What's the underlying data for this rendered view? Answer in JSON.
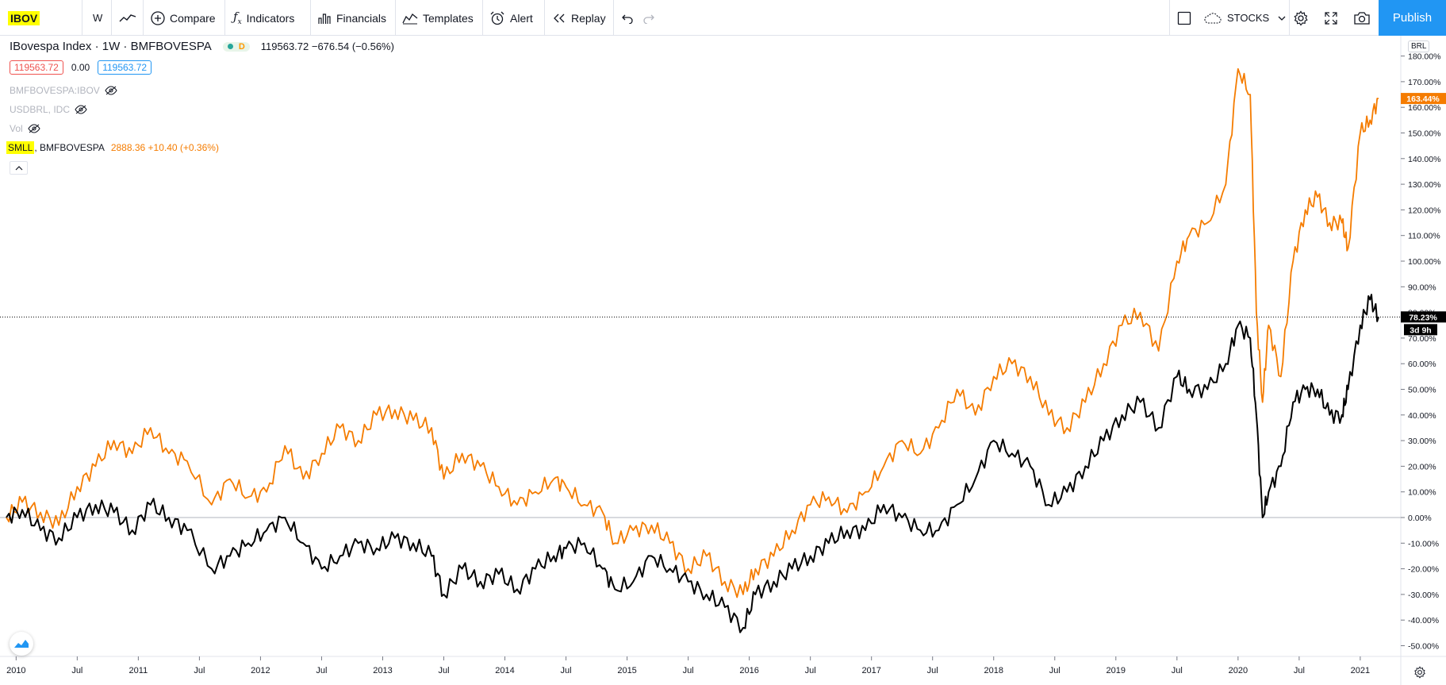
{
  "toolbar": {
    "symbol": "IBOV",
    "interval": "W",
    "compare_label": "Compare",
    "indicators_label": "Indicators",
    "financials_label": "Financials",
    "templates_label": "Templates",
    "alert_label": "Alert",
    "replay_label": "Replay",
    "layout_label": "STOCKS",
    "publish_label": "Publish"
  },
  "legend": {
    "main_title": "IBovespa Index · 1W · BMFBOVESPA",
    "main_values": "119563.72 −676.54 (−0.56%)",
    "badge_letter": "D",
    "box_red": "119563.72",
    "box_mid": "0.00",
    "box_blue": "119563.72",
    "hidden_1": "BMFBOVESPA:IBOV",
    "hidden_2": "USDBRL, IDC",
    "hidden_3": "Vol",
    "smll_symbol": "SMLL",
    "smll_exchange": ", BMFBOVESPA",
    "smll_values": "2888.36 +10.40 (+0.36%)"
  },
  "scale_label": "BRL",
  "price_tags": {
    "orange": "163.44%",
    "black": "78.23%",
    "countdown": "3d 9h"
  },
  "colors": {
    "orange": "#f57c00",
    "black": "#000000",
    "accent": "#2196f3",
    "highlight": "#ffff00"
  },
  "chart_data": {
    "type": "line",
    "ylabel": "",
    "ylim": [
      -50,
      185
    ],
    "x_range": [
      2009.92,
      2021.2
    ],
    "y_ticks": [
      "180.00%",
      "170.00%",
      "160.00%",
      "150.00%",
      "140.00%",
      "130.00%",
      "120.00%",
      "110.00%",
      "100.00%",
      "90.00%",
      "80.00%",
      "70.00%",
      "60.00%",
      "50.00%",
      "40.00%",
      "30.00%",
      "20.00%",
      "10.00%",
      "0.00%",
      "-10.00%",
      "-20.00%",
      "-30.00%",
      "-40.00%",
      "-50.00%"
    ],
    "x_ticks": [
      {
        "label": "2010",
        "x": 2010.0
      },
      {
        "label": "Jul",
        "x": 2010.5
      },
      {
        "label": "2011",
        "x": 2011.0
      },
      {
        "label": "Jul",
        "x": 2011.5
      },
      {
        "label": "2012",
        "x": 2012.0
      },
      {
        "label": "Jul",
        "x": 2012.5
      },
      {
        "label": "2013",
        "x": 2013.0
      },
      {
        "label": "Jul",
        "x": 2013.5
      },
      {
        "label": "2014",
        "x": 2014.0
      },
      {
        "label": "Jul",
        "x": 2014.5
      },
      {
        "label": "2015",
        "x": 2015.0
      },
      {
        "label": "Jul",
        "x": 2015.5
      },
      {
        "label": "2016",
        "x": 2016.0
      },
      {
        "label": "Jul",
        "x": 2016.5
      },
      {
        "label": "2017",
        "x": 2017.0
      },
      {
        "label": "Jul",
        "x": 2017.5
      },
      {
        "label": "2018",
        "x": 2018.0
      },
      {
        "label": "Jul",
        "x": 2018.5
      },
      {
        "label": "2019",
        "x": 2019.0
      },
      {
        "label": "Jul",
        "x": 2019.5
      },
      {
        "label": "2020",
        "x": 2020.0
      },
      {
        "label": "Jul",
        "x": 2020.5
      },
      {
        "label": "2021",
        "x": 2021.0
      }
    ],
    "series": [
      {
        "name": "SMLL",
        "x": [
          2009.92,
          2010.05,
          2010.2,
          2010.35,
          2010.5,
          2010.65,
          2010.8,
          2010.95,
          2011.1,
          2011.25,
          2011.4,
          2011.6,
          2011.75,
          2011.9,
          2012.05,
          2012.2,
          2012.35,
          2012.5,
          2012.65,
          2012.8,
          2012.95,
          2013.1,
          2013.25,
          2013.4,
          2013.5,
          2013.65,
          2013.8,
          2013.95,
          2014.1,
          2014.25,
          2014.4,
          2014.5,
          2014.65,
          2014.8,
          2014.9,
          2015.05,
          2015.2,
          2015.35,
          2015.5,
          2015.65,
          2015.8,
          2015.95,
          2016.05,
          2016.2,
          2016.35,
          2016.5,
          2016.65,
          2016.8,
          2016.95,
          2017.1,
          2017.25,
          2017.4,
          2017.55,
          2017.7,
          2017.85,
          2018.0,
          2018.15,
          2018.3,
          2018.45,
          2018.6,
          2018.75,
          2018.9,
          2019.05,
          2019.2,
          2019.35,
          2019.5,
          2019.6,
          2019.75,
          2019.9,
          2020.0,
          2020.1,
          2020.15,
          2020.2,
          2020.25,
          2020.35,
          2020.45,
          2020.55,
          2020.65,
          2020.75,
          2020.85,
          2020.9,
          2021.0,
          2021.08,
          2021.15
        ],
        "values": [
          0,
          6,
          2,
          -3,
          12,
          20,
          30,
          25,
          35,
          25,
          22,
          5,
          15,
          8,
          10,
          28,
          15,
          25,
          35,
          30,
          40,
          42,
          38,
          35,
          15,
          25,
          20,
          12,
          5,
          10,
          15,
          12,
          5,
          2,
          -10,
          -5,
          -3,
          -10,
          -20,
          -15,
          -25,
          -30,
          -20,
          -15,
          -5,
          5,
          8,
          2,
          10,
          20,
          30,
          25,
          35,
          50,
          40,
          55,
          60,
          55,
          40,
          35,
          45,
          60,
          75,
          80,
          65,
          100,
          110,
          115,
          130,
          175,
          165,
          80,
          45,
          75,
          55,
          100,
          120,
          125,
          115,
          115,
          105,
          150,
          155,
          163.44
        ]
      },
      {
        "name": "IBOV",
        "x": [
          2009.92,
          2010.05,
          2010.2,
          2010.35,
          2010.5,
          2010.65,
          2010.8,
          2010.95,
          2011.1,
          2011.25,
          2011.4,
          2011.6,
          2011.75,
          2011.9,
          2012.05,
          2012.2,
          2012.35,
          2012.5,
          2012.65,
          2012.8,
          2012.95,
          2013.1,
          2013.25,
          2013.4,
          2013.5,
          2013.65,
          2013.8,
          2013.95,
          2014.1,
          2014.25,
          2014.4,
          2014.5,
          2014.65,
          2014.8,
          2014.9,
          2015.05,
          2015.2,
          2015.35,
          2015.5,
          2015.65,
          2015.8,
          2015.95,
          2016.05,
          2016.2,
          2016.35,
          2016.5,
          2016.65,
          2016.8,
          2016.95,
          2017.1,
          2017.25,
          2017.4,
          2017.55,
          2017.7,
          2017.85,
          2018.0,
          2018.15,
          2018.3,
          2018.45,
          2018.6,
          2018.75,
          2018.9,
          2019.05,
          2019.2,
          2019.35,
          2019.5,
          2019.6,
          2019.75,
          2019.9,
          2020.0,
          2020.1,
          2020.15,
          2020.2,
          2020.25,
          2020.35,
          2020.45,
          2020.55,
          2020.65,
          2020.75,
          2020.85,
          2020.9,
          2021.0,
          2021.08,
          2021.15
        ],
        "values": [
          0,
          3,
          -5,
          -8,
          0,
          5,
          2,
          -5,
          5,
          0,
          -5,
          -20,
          -15,
          -10,
          -5,
          0,
          -10,
          -20,
          -15,
          -10,
          -12,
          -8,
          -10,
          -15,
          -30,
          -20,
          -25,
          -22,
          -28,
          -20,
          -15,
          -12,
          -10,
          -20,
          -28,
          -25,
          -15,
          -20,
          -25,
          -30,
          -35,
          -43,
          -30,
          -25,
          -20,
          -15,
          -10,
          -5,
          -5,
          5,
          0,
          -5,
          -5,
          5,
          15,
          30,
          25,
          20,
          5,
          10,
          20,
          30,
          40,
          45,
          35,
          55,
          50,
          50,
          60,
          75,
          70,
          40,
          0,
          10,
          20,
          45,
          50,
          50,
          40,
          40,
          50,
          75,
          85,
          78.23
        ]
      }
    ]
  }
}
